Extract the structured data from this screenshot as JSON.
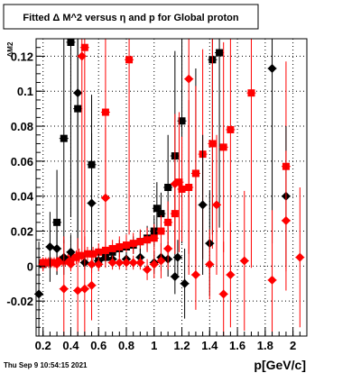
{
  "chart_data": {
    "type": "scatter",
    "title": "Fitted Δ M^2 versus η and p for Global proton",
    "xlabel": "p[GeV/c]",
    "ylabel": "ΔM2",
    "xlim": [
      0.15,
      2.1
    ],
    "ylim": [
      -0.04,
      0.13
    ],
    "x_ticks": [
      0.2,
      0.4,
      0.6,
      0.8,
      1,
      1.2,
      1.4,
      1.6,
      1.8,
      2
    ],
    "x_tick_labels": [
      "0.2",
      "0.4",
      "0.6",
      "0.8",
      "1",
      "1.2",
      "1.4",
      "1.6",
      "1.8",
      "2"
    ],
    "y_ticks": [
      -0.02,
      0,
      0.02,
      0.04,
      0.06,
      0.08,
      0.1,
      0.12
    ],
    "y_tick_labels": [
      "-0.02",
      "0",
      "0.02",
      "0.04",
      "0.06",
      "0.08",
      "0.1",
      "0.12"
    ],
    "grid": true,
    "footer": "Thu Sep  9 10:54:15 2021",
    "series": [
      {
        "marker": "square",
        "color": "#000000",
        "points": [
          {
            "x": 0.2,
            "y": 0.001,
            "e": 0.003
          },
          {
            "x": 0.25,
            "y": 0.002,
            "e": 0.003
          },
          {
            "x": 0.3,
            "y": 0.025,
            "e": 0.03
          },
          {
            "x": 0.35,
            "y": 0.073,
            "e": 0.06
          },
          {
            "x": 0.4,
            "y": 0.128,
            "e": 0.1
          },
          {
            "x": 0.45,
            "y": 0.09,
            "e": 0.08
          },
          {
            "x": 0.55,
            "y": 0.058,
            "e": 0.04
          },
          {
            "x": 0.6,
            "y": 0.003,
            "e": 0.004
          },
          {
            "x": 0.65,
            "y": 0.005,
            "e": 0.004
          },
          {
            "x": 0.7,
            "y": 0.008,
            "e": 0.004
          },
          {
            "x": 0.75,
            "y": 0.01,
            "e": 0.005
          },
          {
            "x": 0.8,
            "y": 0.011,
            "e": 0.005
          },
          {
            "x": 0.85,
            "y": 0.012,
            "e": 0.005
          },
          {
            "x": 0.9,
            "y": 0.014,
            "e": 0.006
          },
          {
            "x": 0.95,
            "y": 0.016,
            "e": 0.007
          },
          {
            "x": 1.0,
            "y": 0.02,
            "e": 0.009
          },
          {
            "x": 1.02,
            "y": 0.033,
            "e": 0.015
          },
          {
            "x": 1.05,
            "y": 0.03,
            "e": 0.012
          },
          {
            "x": 1.1,
            "y": 0.045,
            "e": 0.03
          },
          {
            "x": 1.15,
            "y": 0.063,
            "e": 0.06
          },
          {
            "x": 1.2,
            "y": 0.083,
            "e": 0.07
          },
          {
            "x": 1.3,
            "y": 0.053,
            "e": 0.06
          },
          {
            "x": 1.42,
            "y": 0.118,
            "e": 0.1
          },
          {
            "x": 1.47,
            "y": 0.122,
            "e": 0.1
          }
        ]
      },
      {
        "marker": "square",
        "color": "#ff0000",
        "points": [
          {
            "x": 0.2,
            "y": 0.002,
            "e": 0.003
          },
          {
            "x": 0.22,
            "y": 0.002,
            "e": 0.003
          },
          {
            "x": 0.24,
            "y": 0.002,
            "e": 0.003
          },
          {
            "x": 0.26,
            "y": 0.002,
            "e": 0.003
          },
          {
            "x": 0.28,
            "y": 0.002,
            "e": 0.003
          },
          {
            "x": 0.3,
            "y": 0.002,
            "e": 0.003
          },
          {
            "x": 0.32,
            "y": 0.003,
            "e": 0.003
          },
          {
            "x": 0.34,
            "y": 0.003,
            "e": 0.003
          },
          {
            "x": 0.36,
            "y": 0.003,
            "e": 0.003
          },
          {
            "x": 0.38,
            "y": 0.004,
            "e": 0.003
          },
          {
            "x": 0.4,
            "y": 0.004,
            "e": 0.003
          },
          {
            "x": 0.42,
            "y": 0.005,
            "e": 0.004
          },
          {
            "x": 0.44,
            "y": 0.005,
            "e": 0.004
          },
          {
            "x": 0.46,
            "y": 0.006,
            "e": 0.004
          },
          {
            "x": 0.48,
            "y": 0.006,
            "e": 0.004
          },
          {
            "x": 0.5,
            "y": 0.125,
            "e": 0.12
          },
          {
            "x": 0.52,
            "y": 0.007,
            "e": 0.004
          },
          {
            "x": 0.56,
            "y": 0.007,
            "e": 0.004
          },
          {
            "x": 0.6,
            "y": 0.008,
            "e": 0.005
          },
          {
            "x": 0.65,
            "y": 0.009,
            "e": 0.005
          },
          {
            "x": 0.7,
            "y": 0.01,
            "e": 0.005
          },
          {
            "x": 0.75,
            "y": 0.011,
            "e": 0.006
          },
          {
            "x": 0.8,
            "y": 0.012,
            "e": 0.006
          },
          {
            "x": 0.85,
            "y": 0.013,
            "e": 0.006
          },
          {
            "x": 0.9,
            "y": 0.014,
            "e": 0.007
          },
          {
            "x": 0.95,
            "y": 0.015,
            "e": 0.007
          },
          {
            "x": 1.0,
            "y": 0.016,
            "e": 0.008
          },
          {
            "x": 1.05,
            "y": 0.02,
            "e": 0.009
          },
          {
            "x": 1.1,
            "y": 0.025,
            "e": 0.012
          },
          {
            "x": 1.15,
            "y": 0.03,
            "e": 0.02
          },
          {
            "x": 1.2,
            "y": 0.044,
            "e": 0.03
          },
          {
            "x": 1.3,
            "y": 0.053,
            "e": 0.05
          },
          {
            "x": 1.35,
            "y": 0.064,
            "e": 0.06
          },
          {
            "x": 1.42,
            "y": 0.07,
            "e": 0.06
          },
          {
            "x": 1.5,
            "y": 0.068,
            "e": 0.06
          },
          {
            "x": 1.55,
            "y": 0.078,
            "e": 0.08
          },
          {
            "x": 1.7,
            "y": 0.099,
            "e": 0.1
          },
          {
            "x": 1.95,
            "y": 0.057,
            "e": 0.06
          },
          {
            "x": 0.65,
            "y": 0.088,
            "e": 0.08
          },
          {
            "x": 0.82,
            "y": 0.118,
            "e": 0.1
          },
          {
            "x": 1.18,
            "y": 0.048,
            "e": 0.04
          },
          {
            "x": 1.25,
            "y": 0.045,
            "e": 0.05
          }
        ]
      },
      {
        "marker": "diamond",
        "color": "#000000",
        "points": [
          {
            "x": 0.17,
            "y": -0.016,
            "e": 0.03
          },
          {
            "x": 0.25,
            "y": 0.011,
            "e": 0.02
          },
          {
            "x": 0.3,
            "y": 0.01,
            "e": 0.015
          },
          {
            "x": 0.35,
            "y": 0.005,
            "e": 0.01
          },
          {
            "x": 0.4,
            "y": 0.008,
            "e": 0.01
          },
          {
            "x": 0.45,
            "y": 0.099,
            "e": 0.09
          },
          {
            "x": 0.5,
            "y": 0.002,
            "e": 0.004
          },
          {
            "x": 0.55,
            "y": 0.036,
            "e": 0.04
          },
          {
            "x": 0.6,
            "y": 0.003,
            "e": 0.004
          },
          {
            "x": 0.7,
            "y": 0.004,
            "e": 0.004
          },
          {
            "x": 0.8,
            "y": 0.004,
            "e": 0.004
          },
          {
            "x": 0.9,
            "y": 0.005,
            "e": 0.005
          },
          {
            "x": 1.0,
            "y": 0.002,
            "e": 0.006
          },
          {
            "x": 1.05,
            "y": 0.005,
            "e": 0.008
          },
          {
            "x": 1.1,
            "y": 0.004,
            "e": 0.01
          },
          {
            "x": 1.15,
            "y": -0.006,
            "e": 0.01
          },
          {
            "x": 1.22,
            "y": -0.01,
            "e": 0.02
          },
          {
            "x": 1.35,
            "y": 0.035,
            "e": 0.04
          },
          {
            "x": 1.4,
            "y": 0.013,
            "e": 0.03
          },
          {
            "x": 1.95,
            "y": 0.04,
            "e": 0.04
          },
          {
            "x": 1.85,
            "y": 0.113,
            "e": 0.1
          },
          {
            "x": 1.17,
            "y": 0.005,
            "e": 0.01
          }
        ]
      },
      {
        "marker": "diamond",
        "color": "#ff0000",
        "points": [
          {
            "x": 0.2,
            "y": 0.001,
            "e": 0.004
          },
          {
            "x": 0.3,
            "y": 0.001,
            "e": 0.004
          },
          {
            "x": 0.35,
            "y": -0.013,
            "e": 0.03
          },
          {
            "x": 0.4,
            "y": 0.001,
            "e": 0.004
          },
          {
            "x": 0.45,
            "y": -0.014,
            "e": 0.03
          },
          {
            "x": 0.48,
            "y": 0.12,
            "e": 0.11
          },
          {
            "x": 0.5,
            "y": -0.013,
            "e": 0.03
          },
          {
            "x": 0.55,
            "y": 0.001,
            "e": 0.004
          },
          {
            "x": 0.6,
            "y": 0.001,
            "e": 0.004
          },
          {
            "x": 0.65,
            "y": 0.039,
            "e": 0.04
          },
          {
            "x": 0.7,
            "y": 0.002,
            "e": 0.004
          },
          {
            "x": 0.75,
            "y": 0.002,
            "e": 0.004
          },
          {
            "x": 0.8,
            "y": 0.002,
            "e": 0.004
          },
          {
            "x": 0.85,
            "y": 0.002,
            "e": 0.004
          },
          {
            "x": 0.9,
            "y": 0.002,
            "e": 0.004
          },
          {
            "x": 0.95,
            "y": -0.002,
            "e": 0.006
          },
          {
            "x": 1.0,
            "y": 0.001,
            "e": 0.008
          },
          {
            "x": 1.05,
            "y": 0.003,
            "e": 0.01
          },
          {
            "x": 1.1,
            "y": 0.01,
            "e": 0.012
          },
          {
            "x": 1.15,
            "y": 0.047,
            "e": 0.04
          },
          {
            "x": 1.25,
            "y": 0.107,
            "e": 0.1
          },
          {
            "x": 1.3,
            "y": -0.005,
            "e": 0.02
          },
          {
            "x": 1.4,
            "y": 0.001,
            "e": 0.02
          },
          {
            "x": 1.45,
            "y": 0.035,
            "e": 0.04
          },
          {
            "x": 1.5,
            "y": -0.016,
            "e": 0.03
          },
          {
            "x": 1.55,
            "y": -0.005,
            "e": 0.03
          },
          {
            "x": 1.65,
            "y": 0.003,
            "e": 0.04
          },
          {
            "x": 1.85,
            "y": -0.008,
            "e": 0.04
          },
          {
            "x": 1.95,
            "y": 0.026,
            "e": 0.04
          },
          {
            "x": 2.05,
            "y": 0.005,
            "e": 0.04
          },
          {
            "x": 0.55,
            "y": -0.011,
            "e": 0.02
          }
        ]
      }
    ]
  }
}
